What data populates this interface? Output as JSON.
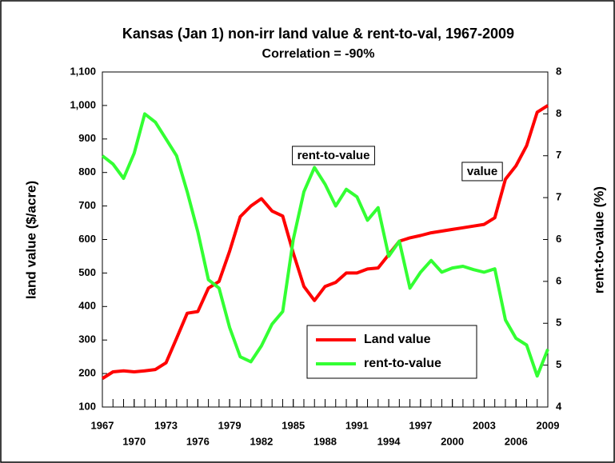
{
  "chart_data": {
    "type": "line",
    "title": "Kansas (Jan 1) non-irr land value & rent-to-val, 1967-2009",
    "subtitle": "Correlation = -90%",
    "y_label": "land value ($/acre)",
    "y2_label": "rent-to-value (%)",
    "annotations": [
      "rent-to-value",
      "value"
    ],
    "x": [
      1967,
      1968,
      1969,
      1970,
      1971,
      1972,
      1973,
      1974,
      1975,
      1976,
      1977,
      1978,
      1979,
      1980,
      1981,
      1982,
      1983,
      1984,
      1985,
      1986,
      1987,
      1988,
      1989,
      1990,
      1991,
      1992,
      1993,
      1994,
      1995,
      1996,
      1997,
      1998,
      1999,
      2000,
      2001,
      2002,
      2003,
      2004,
      2005,
      2006,
      2007,
      2008,
      2009
    ],
    "xlim": [
      1967,
      2009
    ],
    "xticks": [
      1967,
      1970,
      1973,
      1976,
      1979,
      1982,
      1985,
      1988,
      1991,
      1994,
      1997,
      2000,
      2003,
      2006,
      2009
    ],
    "ylim": [
      100,
      1100
    ],
    "yticks": [
      100,
      200,
      300,
      400,
      500,
      600,
      700,
      800,
      900,
      {
        "value": 1000,
        "label": "1,000"
      },
      {
        "value": 1100,
        "label": "1,100"
      }
    ],
    "y2lim": [
      4,
      8
    ],
    "y2ticks": [
      4,
      {
        "value": 4.5,
        "label": "5"
      },
      5,
      {
        "value": 5.5,
        "label": "6"
      },
      6,
      {
        "value": 6.5,
        "label": "7"
      },
      7,
      {
        "value": 7.5,
        "label": "8"
      },
      8
    ],
    "series": [
      {
        "name": "Land value",
        "color": "#ff0000",
        "values": [
          185,
          205,
          208,
          205,
          208,
          212,
          232,
          305,
          380,
          385,
          455,
          475,
          565,
          668,
          700,
          722,
          685,
          670,
          560,
          460,
          418,
          460,
          472,
          500,
          500,
          512,
          515,
          555,
          595,
          605,
          612,
          620,
          625,
          630,
          635,
          640,
          645,
          665,
          780,
          820,
          880,
          980,
          1000
        ]
      },
      {
        "name": "rent-to-value",
        "color": "#33ff33",
        "axis": "y2",
        "values": [
          7.0,
          6.9,
          6.73,
          7.03,
          7.5,
          7.4,
          7.2,
          7.0,
          6.57,
          6.09,
          5.52,
          5.42,
          4.95,
          4.6,
          4.54,
          4.73,
          4.99,
          5.14,
          6.0,
          6.57,
          6.86,
          6.66,
          6.4,
          6.6,
          6.51,
          6.23,
          6.38,
          5.8,
          5.98,
          5.42,
          5.61,
          5.75,
          5.61,
          5.66,
          5.68,
          5.64,
          5.61,
          5.65,
          5.04,
          4.82,
          4.74,
          4.37,
          4.69
        ]
      }
    ]
  }
}
